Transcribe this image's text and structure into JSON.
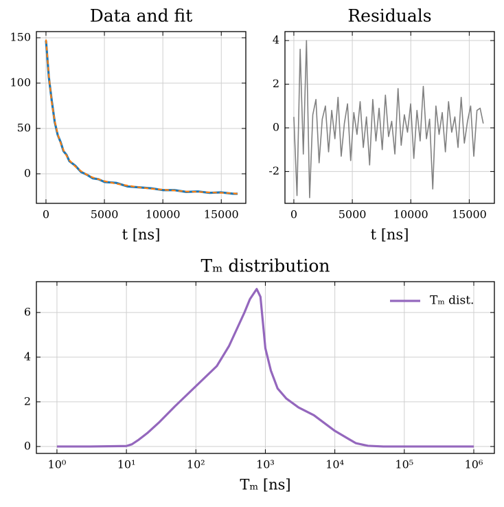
{
  "chart_data": [
    {
      "type": "line",
      "title": "Data and fit",
      "xlabel": "t [ns]",
      "x": [
        0,
        250,
        500,
        750,
        1000,
        1250,
        1500,
        1750,
        2000,
        2500,
        3000,
        3500,
        4000,
        4500,
        5000,
        6000,
        7000,
        8000,
        9000,
        10000,
        11000,
        12000,
        13000,
        14000,
        15000,
        16000,
        16400
      ],
      "series": [
        {
          "name": "data",
          "color": "#1f77b4",
          "linestyle": "solid",
          "values": [
            147,
            106,
            80,
            57,
            43,
            35,
            25,
            21,
            14,
            9,
            2,
            -1,
            -5,
            -6,
            -9,
            -10,
            -14,
            -15,
            -16,
            -18,
            -18,
            -20,
            -19.5,
            -21,
            -20.5,
            -22,
            -22
          ]
        },
        {
          "name": "fit",
          "color": "#ff7f0e",
          "linestyle": "dashed",
          "values": [
            148,
            108,
            78,
            58,
            44,
            34,
            26,
            20,
            15,
            8,
            3,
            -1,
            -4,
            -6,
            -8,
            -11,
            -13,
            -15,
            -16.5,
            -17.5,
            -18.5,
            -19.5,
            -20,
            -20.5,
            -21,
            -21.5,
            -22
          ]
        }
      ],
      "xlim": [
        -820,
        17100
      ],
      "xticks": [
        0,
        5000,
        10000,
        15000
      ],
      "ylim": [
        -32.6,
        156.8
      ],
      "yticks": [
        0,
        50,
        100,
        150
      ],
      "grid": true
    },
    {
      "type": "line",
      "title": "Residuals",
      "xlabel": "t [ns]",
      "x": [
        0,
        270,
        540,
        810,
        1080,
        1350,
        1620,
        1890,
        2160,
        2430,
        2700,
        2970,
        3240,
        3510,
        3780,
        4050,
        4320,
        4590,
        4860,
        5130,
        5400,
        5670,
        5940,
        6210,
        6480,
        6750,
        7020,
        7290,
        7560,
        7830,
        8100,
        8370,
        8640,
        8910,
        9180,
        9450,
        9720,
        9990,
        10260,
        10530,
        10800,
        11070,
        11340,
        11610,
        11880,
        12150,
        12420,
        12690,
        12960,
        13230,
        13500,
        13770,
        14040,
        14310,
        14580,
        14850,
        15120,
        15390,
        15660,
        15930,
        16200
      ],
      "series": [
        {
          "name": "residuals",
          "color": "#808080",
          "linestyle": "solid",
          "values": [
            0.5,
            -3.1,
            3.6,
            -1.2,
            4.0,
            -3.2,
            0.6,
            1.3,
            -1.6,
            0.4,
            1.0,
            -1.1,
            0.8,
            -0.5,
            1.4,
            -1.3,
            0.2,
            1.1,
            -1.5,
            0.7,
            -0.3,
            1.2,
            -0.9,
            0.5,
            -1.7,
            1.3,
            -0.6,
            0.9,
            -1.0,
            1.5,
            -0.4,
            0.3,
            -1.2,
            1.8,
            -0.8,
            0.6,
            -0.2,
            1.1,
            -1.4,
            0.8,
            -0.6,
            1.9,
            -0.5,
            0.4,
            -2.8,
            1.0,
            -0.3,
            0.7,
            -1.1,
            1.2,
            -0.2,
            0.5,
            -0.9,
            1.4,
            -0.7,
            0.3,
            1.0,
            -1.3,
            0.8,
            0.9,
            0.2
          ]
        }
      ],
      "xlim": [
        -760,
        17150
      ],
      "xticks": [
        0,
        5000,
        10000,
        15000
      ],
      "ylim": [
        -3.46,
        4.41
      ],
      "yticks": [
        -2,
        0,
        2,
        4
      ],
      "grid": true
    },
    {
      "type": "line",
      "title": "Tₘ distribution",
      "xlabel": "Tₘ [ns]",
      "xscale": "log",
      "x": [
        1,
        3,
        10,
        12,
        15,
        20,
        30,
        50,
        100,
        200,
        300,
        500,
        600,
        750,
        850,
        1000,
        1200,
        1500,
        2000,
        3000,
        5000,
        10000,
        20000,
        30000,
        50000,
        100000,
        1000000
      ],
      "series": [
        {
          "name": "Tₘ dist.",
          "color": "#9467bd",
          "linestyle": "solid",
          "values": [
            0,
            0,
            0.02,
            0.1,
            0.3,
            0.6,
            1.1,
            1.8,
            2.7,
            3.6,
            4.5,
            6.0,
            6.6,
            7.05,
            6.7,
            4.4,
            3.4,
            2.6,
            2.15,
            1.75,
            1.4,
            0.7,
            0.15,
            0.03,
            0,
            0,
            0
          ]
        }
      ],
      "xlim": [
        0.506,
        1980000
      ],
      "xticks": [
        {
          "value": 1,
          "label": "10⁰"
        },
        {
          "value": 10,
          "label": "10¹"
        },
        {
          "value": 100,
          "label": "10²"
        },
        {
          "value": 1000,
          "label": "10³"
        },
        {
          "value": 10000,
          "label": "10⁴"
        },
        {
          "value": 100000,
          "label": "10⁵"
        },
        {
          "value": 1000000,
          "label": "10⁶"
        }
      ],
      "ylim": [
        -0.31,
        7.38
      ],
      "yticks": [
        0,
        2,
        4,
        6
      ],
      "grid": true,
      "legend": "upper right"
    }
  ]
}
